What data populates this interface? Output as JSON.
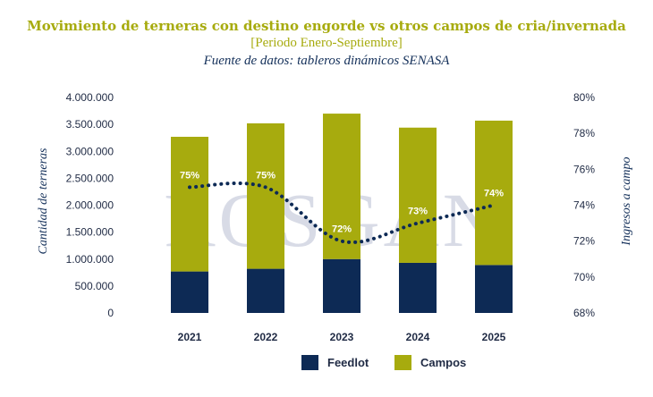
{
  "chart_data": {
    "type": "bar",
    "title": "Movimiento de terneras con destino engorde vs otros campos de cria/invernada",
    "subtitle": "[Periodo Enero-Septiembre]",
    "source": "Fuente de datos: tableros dinámicos SENASA",
    "watermark": "ROSGAN",
    "categories": [
      "2021",
      "2022",
      "2023",
      "2024",
      "2025"
    ],
    "series": [
      {
        "name": "Feedlot",
        "color": "#0d2a55",
        "values": [
          770000,
          820000,
          1000000,
          930000,
          890000
        ]
      },
      {
        "name": "Campos",
        "color": "#a7ab0e",
        "values": [
          2500000,
          2700000,
          2700000,
          2510000,
          2680000
        ]
      }
    ],
    "line_series": {
      "color": "#0d2a55",
      "values": [
        75,
        75,
        72,
        73,
        74
      ],
      "labels": [
        "75%",
        "75%",
        "72%",
        "73%",
        "74%"
      ]
    },
    "ylabel": "Cantidad de terneras",
    "y2label": "Ingresos a campo",
    "ylim": [
      0,
      4000000
    ],
    "y2lim": [
      68,
      80
    ],
    "yticks": [
      "0",
      "500.000",
      "1.000.000",
      "1.500.000",
      "2.000.000",
      "2.500.000",
      "3.000.000",
      "3.500.000",
      "4.000.000"
    ],
    "y2ticks": [
      "68%",
      "70%",
      "72%",
      "74%",
      "76%",
      "78%",
      "80%"
    ],
    "grid": false,
    "legend_position": "bottom"
  }
}
